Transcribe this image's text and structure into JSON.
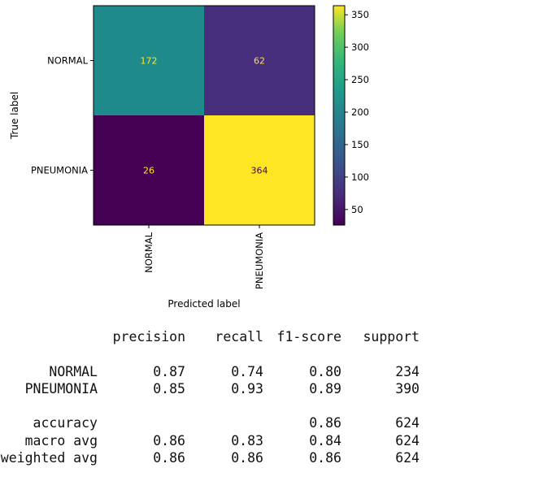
{
  "chart_data": {
    "type": "heatmap",
    "title": "",
    "xlabel": "Predicted label",
    "ylabel": "True label",
    "x_categories": [
      "NORMAL",
      "PNEUMONIA"
    ],
    "y_categories": [
      "NORMAL",
      "PNEUMONIA"
    ],
    "values": [
      [
        172,
        62
      ],
      [
        26,
        364
      ]
    ],
    "colormap": "viridis",
    "color_range": [
      26,
      364
    ],
    "colorbar_ticks": [
      50,
      100,
      150,
      200,
      250,
      300,
      350
    ],
    "colors": {
      "172": "#1f8a8c",
      "62": "#472f7d",
      "26": "#440154",
      "364": "#fde725",
      "annotation_light": "#fde725",
      "annotation_dark": "#440154"
    }
  },
  "report": {
    "headers": [
      "precision",
      "recall",
      "f1-score",
      "support"
    ],
    "rows": [
      {
        "label": "NORMAL",
        "precision": "0.87",
        "recall": "0.74",
        "f1": "0.80",
        "support": "234"
      },
      {
        "label": "PNEUMONIA",
        "precision": "0.85",
        "recall": "0.93",
        "f1": "0.89",
        "support": "390"
      },
      {
        "label": "accuracy",
        "precision": "",
        "recall": "",
        "f1": "0.86",
        "support": "624"
      },
      {
        "label": "macro avg",
        "precision": "0.86",
        "recall": "0.83",
        "f1": "0.84",
        "support": "624"
      },
      {
        "label": "weighted avg",
        "precision": "0.86",
        "recall": "0.86",
        "f1": "0.86",
        "support": "624"
      }
    ]
  }
}
